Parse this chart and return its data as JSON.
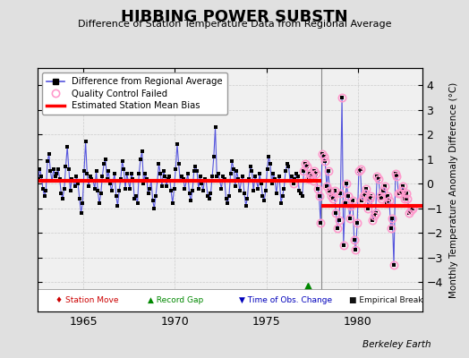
{
  "title": "HIBBING POWER SUBSTN",
  "subtitle": "Difference of Station Temperature Data from Regional Average",
  "ylabel": "Monthly Temperature Anomaly Difference (°C)",
  "credit": "Berkeley Earth",
  "xlim": [
    1962.5,
    1983.5
  ],
  "ylim": [
    -5.2,
    4.7
  ],
  "yticks": [
    -4,
    -3,
    -2,
    -1,
    0,
    1,
    2,
    3,
    4
  ],
  "xticks": [
    1965,
    1970,
    1975,
    1980
  ],
  "bg_color": "#e0e0e0",
  "plot_bg_color": "#f0f0f0",
  "break_x": 1978.0,
  "gap_x": 1977.25,
  "gap_y": -4.2,
  "bias1_y": 0.12,
  "bias1_x_start": 1962.5,
  "bias1_x_end": 1978.0,
  "bias2_y": -0.9,
  "bias2_x_start": 1978.0,
  "bias2_x_end": 1983.5,
  "data": [
    [
      1962.042,
      0.5
    ],
    [
      1962.125,
      -0.3
    ],
    [
      1962.208,
      -0.7
    ],
    [
      1962.292,
      0.3
    ],
    [
      1962.375,
      0.8
    ],
    [
      1962.458,
      0.4
    ],
    [
      1962.542,
      0.2
    ],
    [
      1962.625,
      0.6
    ],
    [
      1962.708,
      0.3
    ],
    [
      1962.792,
      -0.2
    ],
    [
      1962.875,
      -0.5
    ],
    [
      1962.958,
      -0.3
    ],
    [
      1963.042,
      0.9
    ],
    [
      1963.125,
      1.2
    ],
    [
      1963.208,
      0.5
    ],
    [
      1963.292,
      0.1
    ],
    [
      1963.375,
      0.6
    ],
    [
      1963.458,
      0.3
    ],
    [
      1963.542,
      0.4
    ],
    [
      1963.625,
      0.6
    ],
    [
      1963.708,
      0.2
    ],
    [
      1963.792,
      -0.4
    ],
    [
      1963.875,
      -0.6
    ],
    [
      1963.958,
      -0.2
    ],
    [
      1964.042,
      0.7
    ],
    [
      1964.125,
      1.5
    ],
    [
      1964.208,
      0.6
    ],
    [
      1964.292,
      -0.3
    ],
    [
      1964.375,
      0.2
    ],
    [
      1964.458,
      0.1
    ],
    [
      1964.542,
      -0.1
    ],
    [
      1964.625,
      0.3
    ],
    [
      1964.708,
      0.0
    ],
    [
      1964.792,
      -0.6
    ],
    [
      1964.875,
      -1.2
    ],
    [
      1964.958,
      -0.8
    ],
    [
      1965.042,
      0.5
    ],
    [
      1965.125,
      1.7
    ],
    [
      1965.208,
      0.4
    ],
    [
      1965.292,
      -0.1
    ],
    [
      1965.375,
      0.3
    ],
    [
      1965.458,
      0.2
    ],
    [
      1965.542,
      0.1
    ],
    [
      1965.625,
      -0.2
    ],
    [
      1965.708,
      0.5
    ],
    [
      1965.792,
      -0.3
    ],
    [
      1965.875,
      -0.8
    ],
    [
      1965.958,
      -0.4
    ],
    [
      1966.042,
      0.3
    ],
    [
      1966.125,
      0.8
    ],
    [
      1966.208,
      1.0
    ],
    [
      1966.292,
      0.2
    ],
    [
      1966.375,
      0.5
    ],
    [
      1966.458,
      0.0
    ],
    [
      1966.542,
      -0.3
    ],
    [
      1966.625,
      0.1
    ],
    [
      1966.708,
      0.4
    ],
    [
      1966.792,
      -0.5
    ],
    [
      1966.875,
      -0.9
    ],
    [
      1966.958,
      -0.3
    ],
    [
      1967.042,
      0.2
    ],
    [
      1967.125,
      0.9
    ],
    [
      1967.208,
      0.6
    ],
    [
      1967.292,
      -0.2
    ],
    [
      1967.375,
      0.4
    ],
    [
      1967.458,
      0.1
    ],
    [
      1967.542,
      -0.2
    ],
    [
      1967.625,
      0.4
    ],
    [
      1967.708,
      0.2
    ],
    [
      1967.792,
      -0.6
    ],
    [
      1967.875,
      -0.5
    ],
    [
      1967.958,
      -0.8
    ],
    [
      1968.042,
      0.4
    ],
    [
      1968.125,
      1.0
    ],
    [
      1968.208,
      1.3
    ],
    [
      1968.292,
      0.0
    ],
    [
      1968.375,
      0.4
    ],
    [
      1968.458,
      0.2
    ],
    [
      1968.542,
      -0.4
    ],
    [
      1968.625,
      -0.2
    ],
    [
      1968.708,
      0.1
    ],
    [
      1968.792,
      -0.7
    ],
    [
      1968.875,
      -1.0
    ],
    [
      1968.958,
      -0.5
    ],
    [
      1969.042,
      0.1
    ],
    [
      1969.125,
      0.8
    ],
    [
      1969.208,
      0.4
    ],
    [
      1969.292,
      -0.1
    ],
    [
      1969.375,
      0.5
    ],
    [
      1969.458,
      0.3
    ],
    [
      1969.542,
      -0.1
    ],
    [
      1969.625,
      0.2
    ],
    [
      1969.708,
      0.3
    ],
    [
      1969.792,
      -0.3
    ],
    [
      1969.875,
      -0.8
    ],
    [
      1969.958,
      -0.2
    ],
    [
      1970.042,
      0.6
    ],
    [
      1970.125,
      1.6
    ],
    [
      1970.208,
      0.8
    ],
    [
      1970.292,
      0.1
    ],
    [
      1970.375,
      0.3
    ],
    [
      1970.458,
      0.2
    ],
    [
      1970.542,
      -0.2
    ],
    [
      1970.625,
      0.1
    ],
    [
      1970.708,
      0.4
    ],
    [
      1970.792,
      -0.4
    ],
    [
      1970.875,
      -0.7
    ],
    [
      1970.958,
      -0.3
    ],
    [
      1971.042,
      0.5
    ],
    [
      1971.125,
      0.7
    ],
    [
      1971.208,
      0.5
    ],
    [
      1971.292,
      -0.2
    ],
    [
      1971.375,
      0.3
    ],
    [
      1971.458,
      0.0
    ],
    [
      1971.542,
      -0.3
    ],
    [
      1971.625,
      0.2
    ],
    [
      1971.708,
      0.1
    ],
    [
      1971.792,
      -0.5
    ],
    [
      1971.875,
      -0.6
    ],
    [
      1971.958,
      -0.4
    ],
    [
      1972.042,
      0.3
    ],
    [
      1972.125,
      1.1
    ],
    [
      1972.208,
      2.3
    ],
    [
      1972.292,
      0.3
    ],
    [
      1972.375,
      0.4
    ],
    [
      1972.458,
      0.1
    ],
    [
      1972.542,
      -0.2
    ],
    [
      1972.625,
      0.3
    ],
    [
      1972.708,
      0.2
    ],
    [
      1972.792,
      -0.6
    ],
    [
      1972.875,
      -0.8
    ],
    [
      1972.958,
      -0.5
    ],
    [
      1973.042,
      0.4
    ],
    [
      1973.125,
      0.9
    ],
    [
      1973.208,
      0.6
    ],
    [
      1973.292,
      -0.1
    ],
    [
      1973.375,
      0.5
    ],
    [
      1973.458,
      0.2
    ],
    [
      1973.542,
      -0.3
    ],
    [
      1973.625,
      0.1
    ],
    [
      1973.708,
      0.3
    ],
    [
      1973.792,
      -0.4
    ],
    [
      1973.875,
      -0.9
    ],
    [
      1973.958,
      -0.6
    ],
    [
      1974.042,
      0.2
    ],
    [
      1974.125,
      0.7
    ],
    [
      1974.208,
      0.5
    ],
    [
      1974.292,
      -0.3
    ],
    [
      1974.375,
      0.3
    ],
    [
      1974.458,
      0.1
    ],
    [
      1974.542,
      -0.2
    ],
    [
      1974.625,
      0.4
    ],
    [
      1974.708,
      0.0
    ],
    [
      1974.792,
      -0.5
    ],
    [
      1974.875,
      -0.7
    ],
    [
      1974.958,
      -0.3
    ],
    [
      1975.042,
      0.6
    ],
    [
      1975.125,
      1.1
    ],
    [
      1975.208,
      0.8
    ],
    [
      1975.292,
      0.0
    ],
    [
      1975.375,
      0.4
    ],
    [
      1975.458,
      0.2
    ],
    [
      1975.542,
      -0.4
    ],
    [
      1975.625,
      0.1
    ],
    [
      1975.708,
      0.3
    ],
    [
      1975.792,
      -0.8
    ],
    [
      1975.875,
      -0.5
    ],
    [
      1975.958,
      -0.2
    ],
    [
      1976.042,
      0.5
    ],
    [
      1976.125,
      0.8
    ],
    [
      1976.208,
      0.7
    ],
    [
      1976.292,
      0.1
    ],
    [
      1976.375,
      0.3
    ],
    [
      1976.458,
      0.0
    ],
    [
      1976.542,
      0.2
    ],
    [
      1976.625,
      0.4
    ],
    [
      1976.708,
      0.3
    ],
    [
      1976.792,
      -0.3
    ],
    [
      1976.875,
      -0.4
    ],
    [
      1976.958,
      -0.5
    ],
    [
      1977.042,
      0.5
    ],
    [
      1977.125,
      0.8
    ],
    [
      1977.208,
      0.7
    ],
    [
      1977.292,
      0.2
    ],
    [
      1977.375,
      0.4
    ],
    [
      1977.458,
      0.3
    ],
    [
      1977.542,
      0.1
    ],
    [
      1977.625,
      0.5
    ],
    [
      1977.708,
      0.4
    ],
    [
      1977.792,
      -0.2
    ],
    [
      1977.875,
      -0.5
    ],
    [
      1977.958,
      -1.6
    ],
    [
      1978.042,
      1.2
    ],
    [
      1978.125,
      1.1
    ],
    [
      1978.208,
      0.9
    ],
    [
      1978.292,
      -0.1
    ],
    [
      1978.375,
      0.5
    ],
    [
      1978.458,
      -0.3
    ],
    [
      1978.542,
      -0.5
    ],
    [
      1978.625,
      -0.6
    ],
    [
      1978.708,
      -0.3
    ],
    [
      1978.792,
      -1.2
    ],
    [
      1978.875,
      -1.8
    ],
    [
      1978.958,
      -1.5
    ],
    [
      1979.042,
      -0.4
    ],
    [
      1979.125,
      3.5
    ],
    [
      1979.208,
      -2.5
    ],
    [
      1979.292,
      -0.8
    ],
    [
      1979.375,
      0.0
    ],
    [
      1979.458,
      -0.5
    ],
    [
      1979.542,
      -1.4
    ],
    [
      1979.625,
      -0.9
    ],
    [
      1979.708,
      -0.7
    ],
    [
      1979.792,
      -2.3
    ],
    [
      1979.875,
      -2.7
    ],
    [
      1979.958,
      -1.6
    ],
    [
      1980.042,
      0.5
    ],
    [
      1980.125,
      0.6
    ],
    [
      1980.208,
      -0.7
    ],
    [
      1980.292,
      -0.5
    ],
    [
      1980.375,
      -0.4
    ],
    [
      1980.458,
      -0.2
    ],
    [
      1980.542,
      -1.0
    ],
    [
      1980.625,
      -0.6
    ],
    [
      1980.708,
      -0.5
    ],
    [
      1980.792,
      -1.5
    ],
    [
      1980.875,
      -1.3
    ],
    [
      1980.958,
      -1.2
    ],
    [
      1981.042,
      0.3
    ],
    [
      1981.125,
      0.2
    ],
    [
      1981.208,
      -0.5
    ],
    [
      1981.292,
      -0.6
    ],
    [
      1981.375,
      -0.3
    ],
    [
      1981.458,
      -0.1
    ],
    [
      1981.542,
      -0.8
    ],
    [
      1981.625,
      -0.5
    ],
    [
      1981.708,
      -0.7
    ],
    [
      1981.792,
      -1.8
    ],
    [
      1981.875,
      -1.4
    ],
    [
      1981.958,
      -3.3
    ],
    [
      1982.042,
      0.4
    ],
    [
      1982.125,
      0.3
    ],
    [
      1982.208,
      -0.4
    ],
    [
      1982.292,
      -0.4
    ],
    [
      1982.375,
      -0.3
    ],
    [
      1982.458,
      -0.1
    ],
    [
      1982.542,
      -0.6
    ],
    [
      1982.625,
      -0.4
    ],
    [
      1982.708,
      -0.6
    ],
    [
      1982.792,
      -1.2
    ],
    [
      1982.875,
      -1.1
    ],
    [
      1982.958,
      -1.0
    ]
  ],
  "qc_failed_x": [
    1976.458,
    1977.042,
    1977.125,
    1977.208,
    1977.292,
    1977.375,
    1977.458,
    1977.542,
    1977.625,
    1977.708,
    1977.792,
    1977.875,
    1977.958,
    1978.042,
    1978.125,
    1978.208,
    1978.292,
    1978.375,
    1978.458,
    1978.542,
    1978.625,
    1978.708,
    1978.792,
    1978.875,
    1978.958,
    1979.042,
    1979.125,
    1979.208,
    1979.292,
    1979.375,
    1979.458,
    1979.542,
    1979.625,
    1979.708,
    1979.792,
    1979.875,
    1979.958,
    1980.042,
    1980.125,
    1980.208,
    1980.292,
    1980.375,
    1980.458,
    1980.542,
    1980.625,
    1980.708,
    1980.792,
    1980.875,
    1980.958,
    1981.042,
    1981.125,
    1981.208,
    1981.292,
    1981.375,
    1981.458,
    1981.542,
    1981.625,
    1981.708,
    1981.792,
    1981.875,
    1981.958,
    1982.042,
    1982.125,
    1982.208,
    1982.292,
    1982.375,
    1982.458,
    1982.542,
    1982.625,
    1982.708,
    1982.792,
    1982.875,
    1982.958
  ],
  "qc_failed_y": [
    0.0,
    0.5,
    0.8,
    0.7,
    0.2,
    0.4,
    0.3,
    0.1,
    0.5,
    0.4,
    -0.2,
    -0.5,
    -1.6,
    1.2,
    1.1,
    0.9,
    -0.1,
    0.5,
    -0.3,
    -0.5,
    -0.6,
    -0.3,
    -1.2,
    -1.8,
    -1.5,
    -0.4,
    3.5,
    -2.5,
    -0.8,
    0.0,
    -0.5,
    -1.4,
    -0.9,
    -0.7,
    -2.3,
    -2.7,
    -1.6,
    0.5,
    0.6,
    -0.7,
    -0.5,
    -0.4,
    -0.2,
    -1.0,
    -0.6,
    -0.5,
    -1.5,
    -1.3,
    -1.2,
    0.3,
    0.2,
    -0.5,
    -0.6,
    -0.3,
    -0.1,
    -0.8,
    -0.5,
    -0.7,
    -1.8,
    -1.4,
    -3.3,
    0.4,
    0.3,
    -0.4,
    -0.4,
    -0.3,
    -0.1,
    -0.6,
    -0.4,
    -0.6,
    -1.2,
    -1.1,
    -1.0
  ]
}
